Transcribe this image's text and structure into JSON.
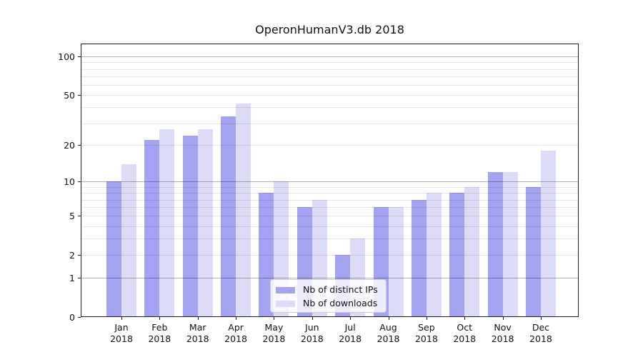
{
  "chart_data": {
    "type": "bar",
    "title": "OperonHumanV3.db 2018",
    "categories": [
      "Jan",
      "Feb",
      "Mar",
      "Apr",
      "May",
      "Jun",
      "Jul",
      "Aug",
      "Sep",
      "Oct",
      "Nov",
      "Dec"
    ],
    "x_tick_year": "2018",
    "series": [
      {
        "name": "Nb of distinct IPs",
        "color": "#a3a3f2",
        "values": [
          10,
          22,
          24,
          34,
          8,
          6,
          2,
          6,
          7,
          8,
          12,
          9
        ]
      },
      {
        "name": "Nb of downloads",
        "color": "#dcdcf9",
        "values": [
          14,
          27,
          27,
          43,
          10,
          7,
          3,
          6,
          8,
          9,
          12,
          18
        ]
      }
    ],
    "xlabel": "",
    "ylabel": "",
    "yscale": "log(value+1)",
    "ylim": [
      0,
      126
    ],
    "y_ticks": [
      0,
      1,
      2,
      5,
      10,
      20,
      50,
      100
    ],
    "gridlines": {
      "emphasized": [
        1,
        10,
        100
      ],
      "regular": [
        2,
        5,
        20,
        50
      ],
      "minor": [
        3,
        4,
        6,
        7,
        8,
        9,
        30,
        40,
        60,
        70,
        80,
        90
      ]
    },
    "grid": true,
    "legend_position": "lower center"
  }
}
